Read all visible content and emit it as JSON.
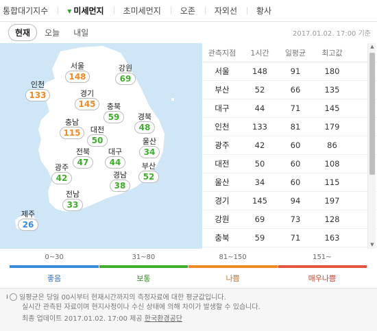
{
  "top_tabs": [
    "통합대기지수",
    "미세먼지",
    "초미세먼지",
    "오존",
    "자외선",
    "황사"
  ],
  "active_tab": "미세먼지",
  "sub_tabs": [
    "현재",
    "오늘",
    "내일"
  ],
  "timestamp": "2017.01.02. 17:00 기준",
  "colors": {
    "good": "#3a8be0",
    "normal": "#3fae2a",
    "bad": "#f08a24",
    "very_bad": "#e4543f",
    "sea": "#cfe6f6",
    "land": "#ffffff"
  },
  "map": {
    "stations": [
      {
        "name": "서울",
        "value": "148",
        "level": "bad"
      },
      {
        "name": "강원",
        "value": "69",
        "level": "normal"
      },
      {
        "name": "인천",
        "value": "133",
        "level": "bad"
      },
      {
        "name": "경기",
        "value": "145",
        "level": "bad"
      },
      {
        "name": "충북",
        "value": "59",
        "level": "normal"
      },
      {
        "name": "경북",
        "value": "48",
        "level": "normal"
      },
      {
        "name": "충남",
        "value": "115",
        "level": "bad"
      },
      {
        "name": "대전",
        "value": "50",
        "level": "normal"
      },
      {
        "name": "울산",
        "value": "34",
        "level": "normal"
      },
      {
        "name": "전북",
        "value": "47",
        "level": "normal"
      },
      {
        "name": "대구",
        "value": "44",
        "level": "normal"
      },
      {
        "name": "부산",
        "value": "52",
        "level": "normal"
      },
      {
        "name": "광주",
        "value": "42",
        "level": "normal"
      },
      {
        "name": "경남",
        "value": "38",
        "level": "normal"
      },
      {
        "name": "전남",
        "value": "33",
        "level": "normal"
      },
      {
        "name": "제주",
        "value": "26",
        "level": "good"
      }
    ]
  },
  "table": {
    "headers": [
      "관측지점",
      "1시간",
      "일평균",
      "최고값"
    ],
    "rows": [
      [
        "서울",
        "148",
        "91",
        "180"
      ],
      [
        "부산",
        "52",
        "66",
        "135"
      ],
      [
        "대구",
        "44",
        "71",
        "145"
      ],
      [
        "인천",
        "133",
        "81",
        "179"
      ],
      [
        "광주",
        "42",
        "60",
        "86"
      ],
      [
        "대전",
        "50",
        "60",
        "108"
      ],
      [
        "울산",
        "34",
        "60",
        "115"
      ],
      [
        "경기",
        "145",
        "94",
        "197"
      ],
      [
        "강원",
        "69",
        "73",
        "128"
      ],
      [
        "충북",
        "59",
        "71",
        "163"
      ]
    ]
  },
  "legend": {
    "ranges": [
      "0~30",
      "31~80",
      "81~150",
      "151~"
    ],
    "labels": [
      "좋음",
      "보통",
      "나쁨",
      "매우나쁨"
    ]
  },
  "notes": {
    "line1": "일평균은 당일 00시부터 현재시간까지의 측정자료에 대한 평균값입니다.",
    "line2": "실시간 관측된 자료이며 현지사정이나 수신 상태에 의해 차이가 발생할 수 있습니다.",
    "update_prefix": "최종 업데이트 2017.01.02. 17:00 제공",
    "source": "한국환경공단"
  }
}
